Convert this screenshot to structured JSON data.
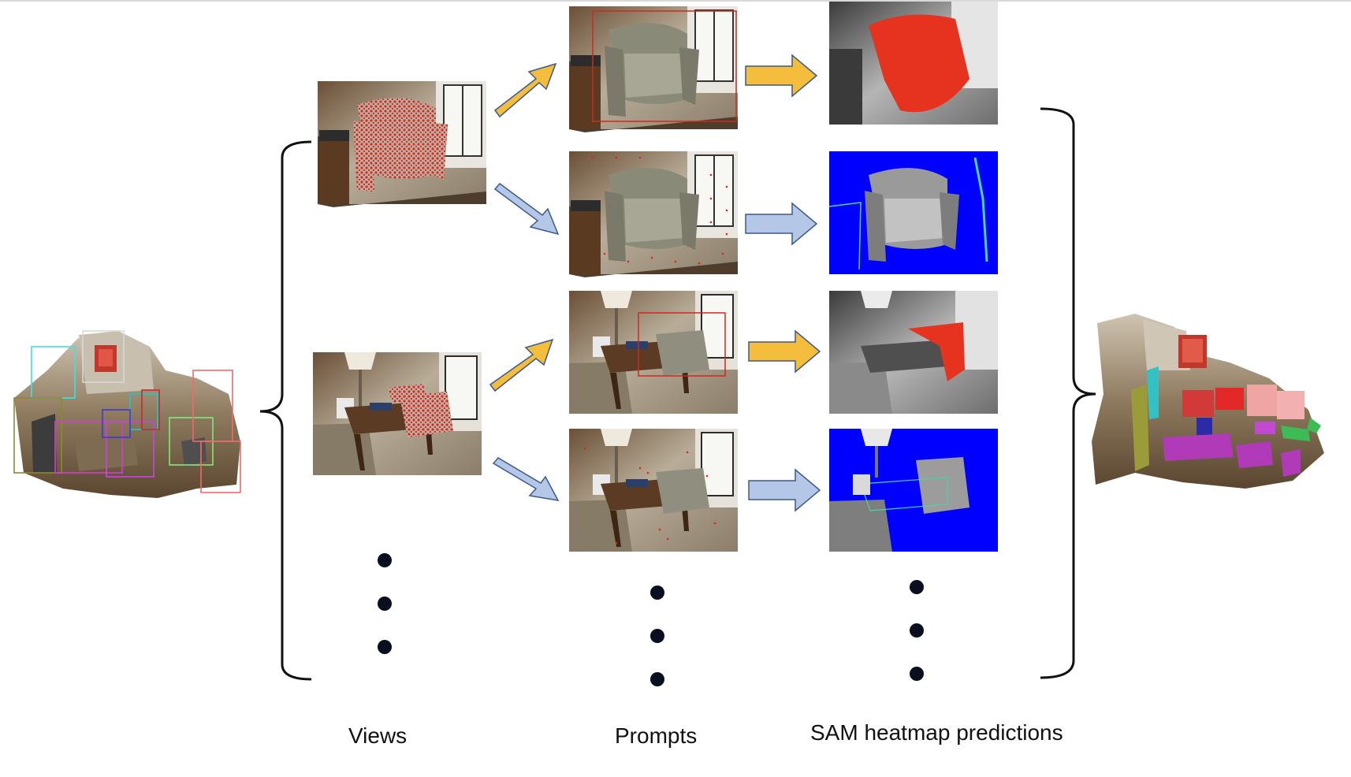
{
  "labels": {
    "views": "Views",
    "prompts": "Prompts",
    "sam": "SAM heatmap predictions"
  },
  "colors": {
    "arrow_box": "#f4bd3c",
    "arrow_point": "#b4c7e7",
    "arrow_stroke": "#3b5a8a",
    "mask_red": "#e5331f",
    "mask_blue": "#0000ff",
    "box_red": "#cc2a1e",
    "dot": "#0a0f20"
  },
  "rows": [
    {
      "prompt_type": "box",
      "mask": "red"
    },
    {
      "prompt_type": "points",
      "mask": "blue"
    },
    {
      "prompt_type": "box",
      "mask": "red"
    },
    {
      "prompt_type": "points",
      "mask": "blue"
    }
  ]
}
